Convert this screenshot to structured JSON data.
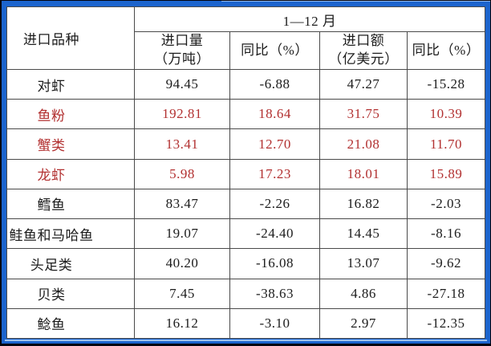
{
  "colors": {
    "frame_blue": "#1c64cd",
    "frame_highlight_blue": "#9cc2ee",
    "outer_edge_dark": "#05050f",
    "grid_line": "#4a4a4a",
    "text_black": "#1c1c1c",
    "text_red": "#b23030",
    "panel_white": "#ffffff"
  },
  "table": {
    "corner_header": "进口品种",
    "period_header": "1—12 月",
    "sub_headers": [
      {
        "line1": "进口量",
        "line2": "（万吨）"
      },
      {
        "line1": "同比（%）",
        "line2": ""
      },
      {
        "line1": "进口额",
        "line2": "（亿美元）"
      },
      {
        "line1": "同比（%）",
        "line2": ""
      }
    ],
    "rows": [
      {
        "name": "对虾",
        "volume": "94.45",
        "volume_yoy": "-6.88",
        "value": "47.27",
        "value_yoy": "-15.28",
        "highlighted": false
      },
      {
        "name": "鱼粉",
        "volume": "192.81",
        "volume_yoy": "18.64",
        "value": "31.75",
        "value_yoy": "10.39",
        "highlighted": true
      },
      {
        "name": "蟹类",
        "volume": "13.41",
        "volume_yoy": "12.70",
        "value": "21.08",
        "value_yoy": "11.70",
        "highlighted": true
      },
      {
        "name": "龙虾",
        "volume": "5.98",
        "volume_yoy": "17.23",
        "value": "18.01",
        "value_yoy": "15.89",
        "highlighted": true
      },
      {
        "name": "鳕鱼",
        "volume": "83.47",
        "volume_yoy": "-2.26",
        "value": "16.82",
        "value_yoy": "-2.03",
        "highlighted": false
      },
      {
        "name": "鲑鱼和马哈鱼",
        "volume": "19.07",
        "volume_yoy": "-24.40",
        "value": "14.45",
        "value_yoy": "-8.16",
        "highlighted": false
      },
      {
        "name": "头足类",
        "volume": "40.20",
        "volume_yoy": "-16.08",
        "value": "13.07",
        "value_yoy": "-9.62",
        "highlighted": false
      },
      {
        "name": "贝类",
        "volume": "7.45",
        "volume_yoy": "-38.63",
        "value": "4.86",
        "value_yoy": "-27.18",
        "highlighted": false
      },
      {
        "name": "鲶鱼",
        "volume": "16.12",
        "volume_yoy": "-3.10",
        "value": "2.97",
        "value_yoy": "-12.35",
        "highlighted": false
      }
    ]
  },
  "chart_data": {
    "type": "table",
    "title": "",
    "group_header": "1—12 月",
    "row_header": "进口品种",
    "columns": [
      "进口量（万吨）",
      "同比（%）",
      "进口额（亿美元）",
      "同比（%）"
    ],
    "rows": [
      [
        "对虾",
        94.45,
        -6.88,
        47.27,
        -15.28
      ],
      [
        "鱼粉",
        192.81,
        18.64,
        31.75,
        10.39
      ],
      [
        "蟹类",
        13.41,
        12.7,
        21.08,
        11.7
      ],
      [
        "龙虾",
        5.98,
        17.23,
        18.01,
        15.89
      ],
      [
        "鳕鱼",
        83.47,
        -2.26,
        16.82,
        -2.03
      ],
      [
        "鲑鱼和马哈鱼",
        19.07,
        -24.4,
        14.45,
        -8.16
      ],
      [
        "头足类",
        40.2,
        -16.08,
        13.07,
        -9.62
      ],
      [
        "贝类",
        7.45,
        -38.63,
        4.86,
        -27.18
      ],
      [
        "鲶鱼",
        16.12,
        -3.1,
        2.97,
        -12.35
      ]
    ],
    "highlighted_rows": [
      "鱼粉",
      "蟹类",
      "龙虾"
    ],
    "highlight_color": "#b23030"
  }
}
